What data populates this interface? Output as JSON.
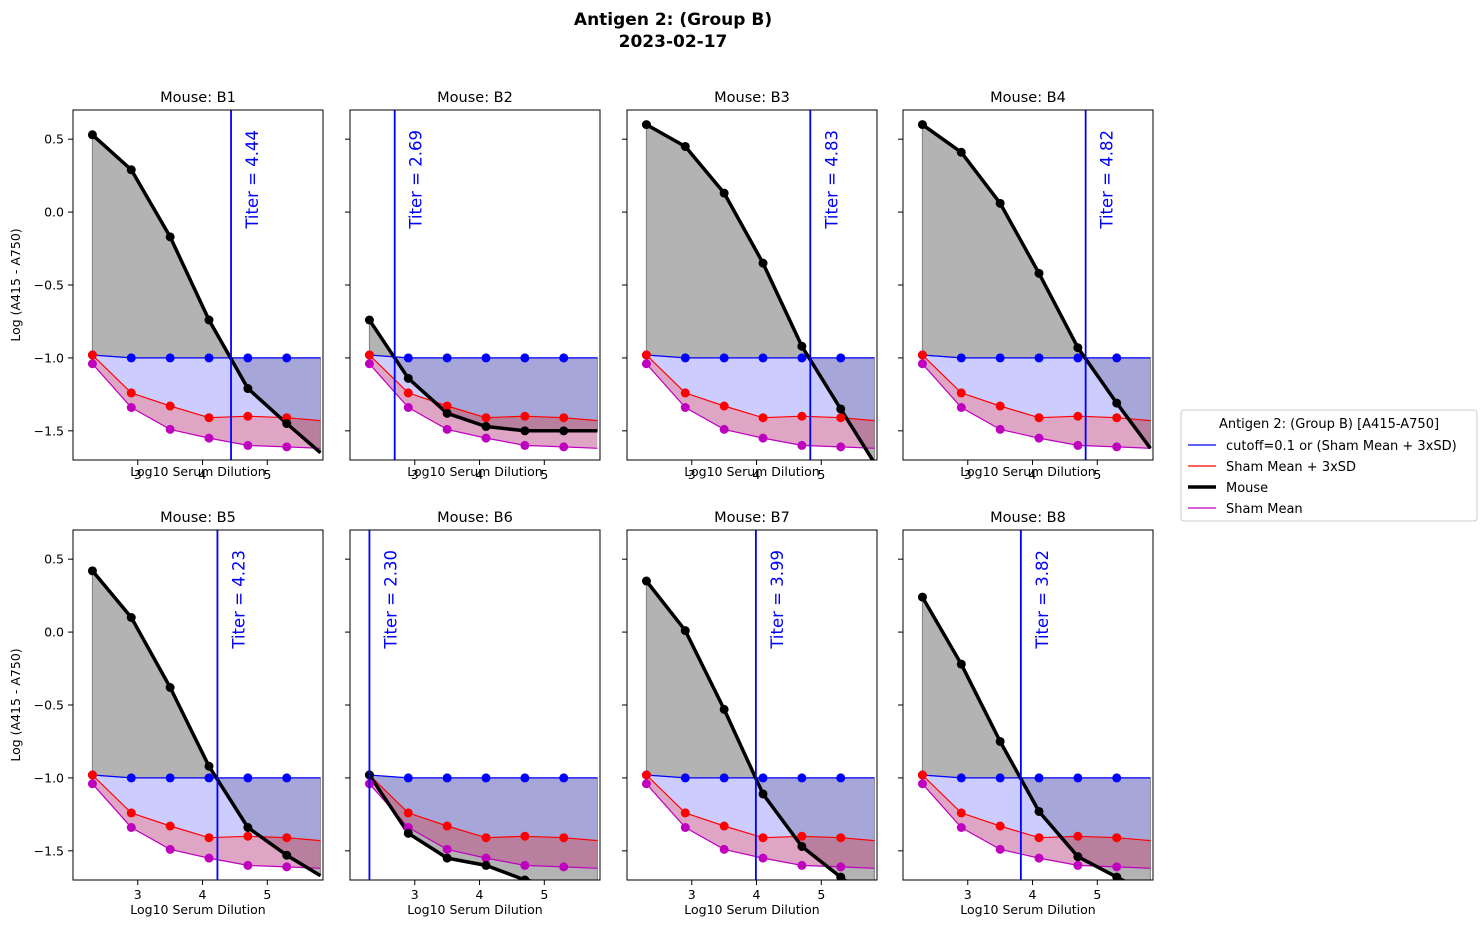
{
  "chart_data": {
    "type": "line",
    "title": "Antigen 2: (Group B)",
    "subtitle": "2023-02-17",
    "xlabel": "Log10 Serum Dilution",
    "ylabel": "Log (A415 - A750)",
    "xlim": [
      2.0,
      5.86
    ],
    "ylim": [
      -1.7,
      0.7
    ],
    "xticks": [
      3,
      4,
      5
    ],
    "yticks": [
      0.5,
      0.0,
      -0.5,
      -1.0,
      -1.5
    ],
    "ytick_labels": [
      "0.5",
      "0.0",
      "−0.5",
      "−1.0",
      "−1.5"
    ],
    "xtick_labels": [
      "3",
      "4",
      "5"
    ],
    "grid": false,
    "legend": {
      "title": "Antigen 2: (Group B) [A415-A750]",
      "placement": "right",
      "entries": [
        {
          "label": "cutoff=0.1 or (Sham Mean + 3xSD)",
          "color": "#0000ff"
        },
        {
          "label": "Sham Mean + 3xSD",
          "color": "#ff0000"
        },
        {
          "label": "Mouse",
          "color": "#000000"
        },
        {
          "label": "Sham Mean",
          "color": "#bf00bf"
        }
      ]
    },
    "colors": {
      "cutoff": "#0000ff",
      "sham_3sd": "#ff0000",
      "mouse": "#000000",
      "sham_mean": "#bf00bf",
      "fill_mouse": "#808080",
      "fill_cutoff": "#9999ff",
      "fill_sham": "#bf4c8c"
    },
    "x": [
      2.3,
      2.9,
      3.5,
      4.1,
      4.7,
      5.3
    ],
    "x_end": 5.82,
    "cutoff": [
      -0.98,
      -1.0,
      -1.0,
      -1.0,
      -1.0,
      -1.0,
      -1.0
    ],
    "sham_plus_3sd": [
      -0.98,
      -1.24,
      -1.33,
      -1.41,
      -1.4,
      -1.41,
      -1.43
    ],
    "sham_mean": [
      -1.04,
      -1.34,
      -1.49,
      -1.55,
      -1.6,
      -1.61,
      -1.62
    ],
    "panels": [
      {
        "title": "Mouse: B1",
        "mouse": [
          0.53,
          0.29,
          -0.17,
          -0.74,
          -1.21,
          -1.45,
          -1.65
        ],
        "titer": 4.44,
        "titer_label": "Titer = 4.44"
      },
      {
        "title": "Mouse: B2",
        "mouse": [
          -0.74,
          -1.14,
          -1.38,
          -1.47,
          -1.5,
          -1.5,
          -1.5
        ],
        "titer": 2.69,
        "titer_label": "Titer = 2.69"
      },
      {
        "title": "Mouse: B3",
        "mouse": [
          0.6,
          0.45,
          0.13,
          -0.35,
          -0.92,
          -1.35,
          -1.72
        ],
        "titer": 4.83,
        "titer_label": "Titer = 4.83"
      },
      {
        "title": "Mouse: B4",
        "mouse": [
          0.6,
          0.41,
          0.06,
          -0.42,
          -0.93,
          -1.31,
          -1.62
        ],
        "titer": 4.82,
        "titer_label": "Titer = 4.82"
      },
      {
        "title": "Mouse: B5",
        "mouse": [
          0.42,
          0.1,
          -0.38,
          -0.92,
          -1.34,
          -1.53,
          -1.67
        ],
        "titer": 4.23,
        "titer_label": "Titer = 4.23"
      },
      {
        "title": "Mouse: B6",
        "mouse": [
          -0.98,
          -1.38,
          -1.55,
          -1.6,
          -1.7,
          -1.75,
          -1.8
        ],
        "titer": 2.3,
        "titer_label": "Titer = 2.30"
      },
      {
        "title": "Mouse: B7",
        "mouse": [
          0.35,
          0.01,
          -0.53,
          -1.11,
          -1.47,
          -1.68,
          -1.85
        ],
        "titer": 3.99,
        "titer_label": "Titer = 3.99"
      },
      {
        "title": "Mouse: B8",
        "mouse": [
          0.24,
          -0.22,
          -0.75,
          -1.23,
          -1.54,
          -1.68,
          -1.8
        ],
        "titer": 3.82,
        "titer_label": "Titer = 3.82"
      }
    ]
  }
}
